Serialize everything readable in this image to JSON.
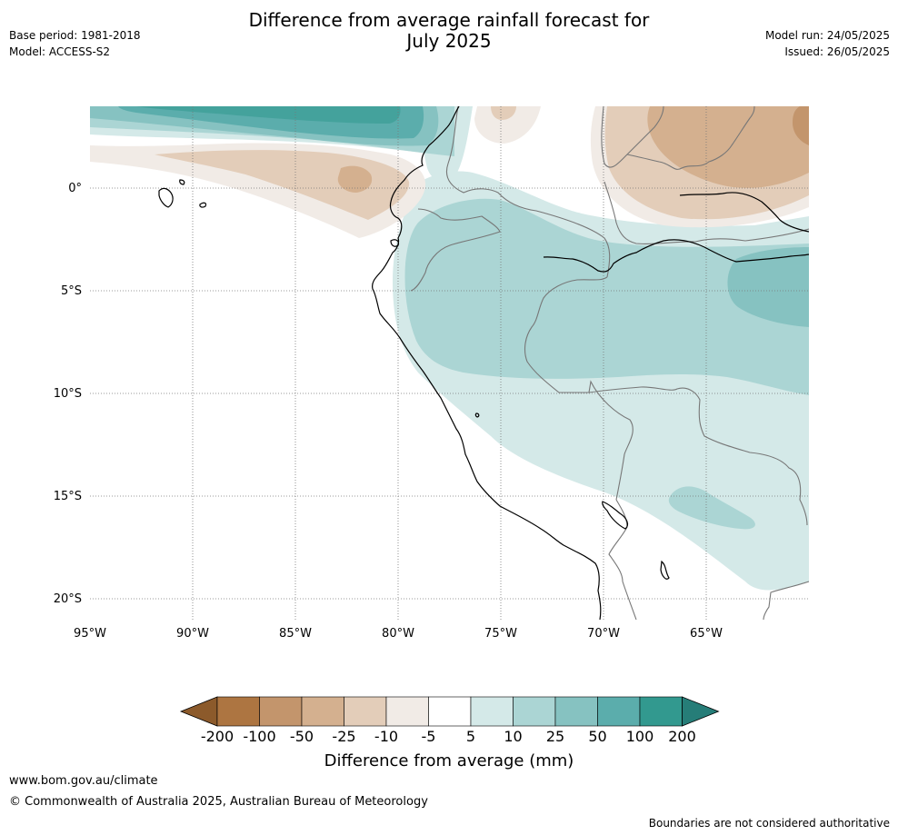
{
  "header": {
    "title_line1": "Difference from average rainfall forecast for",
    "title_line2": "July 2025",
    "base_period": "Base period: 1981-2018",
    "model": "Model: ACCESS-S2",
    "model_run": "Model run: 24/05/2025",
    "issued": "Issued: 26/05/2025"
  },
  "map": {
    "region": "Western South America",
    "lon_range": [
      -95,
      -60
    ],
    "lat_range": [
      -21,
      4
    ],
    "lat_ticks": [
      "0°",
      "5°S",
      "10°S",
      "15°S",
      "20°S"
    ],
    "lon_ticks": [
      "95°W",
      "90°W",
      "85°W",
      "80°W",
      "75°W",
      "70°W",
      "65°W"
    ],
    "gridlines": true
  },
  "colorbar": {
    "title": "Difference from average (mm)",
    "labels": [
      "-200",
      "-100",
      "-50",
      "-25",
      "-10",
      "-5",
      "5",
      "10",
      "25",
      "50",
      "100",
      "200"
    ],
    "colors": [
      "#8c5a2b",
      "#ad7541",
      "#c3956c",
      "#d4b08f",
      "#e3cdb9",
      "#f1ebe6",
      "#ffffff",
      "#d4e9e8",
      "#abd5d4",
      "#86c2c1",
      "#5badac",
      "#32998f",
      "#267d78"
    ]
  },
  "footer": {
    "website": "www.bom.gov.au/climate",
    "copyright": "© Commonwealth of Australia 2025, Australian Bureau of Meteorology",
    "disclaimer": "Boundaries are not considered authoritative"
  }
}
